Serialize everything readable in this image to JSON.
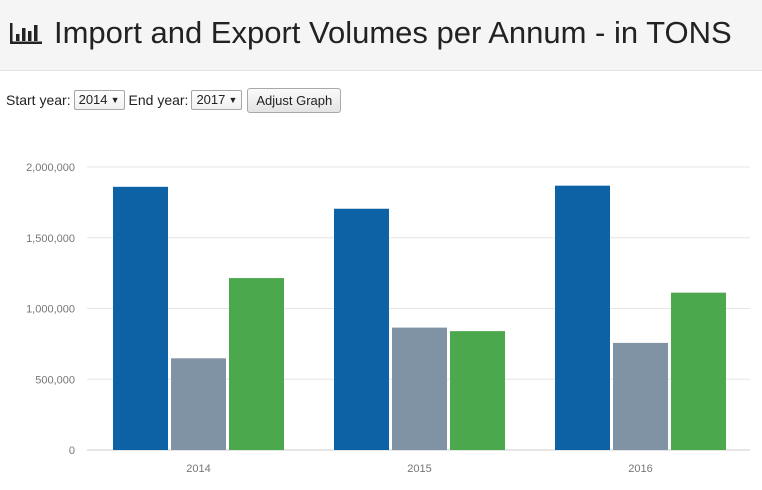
{
  "header": {
    "title": "Import and Export Volumes per Annum - in TONS",
    "icon": "bar-chart-icon"
  },
  "controls": {
    "start_label": "Start year:",
    "start_value": "2014",
    "end_label": "End year:",
    "end_value": "2017",
    "adjust_label": "Adjust Graph"
  },
  "chart_data": {
    "type": "bar",
    "categories": [
      "2014",
      "2015",
      "2016"
    ],
    "series": [
      {
        "color": "#0d62a6",
        "values": [
          1860000,
          1705000,
          1868000
        ]
      },
      {
        "color": "#7f93a5",
        "values": [
          648000,
          865000,
          757000
        ]
      },
      {
        "color": "#4ca84c",
        "values": [
          1215000,
          840000,
          1112000
        ]
      }
    ],
    "ylim": [
      0,
      2000000
    ],
    "y_ticks": [
      0,
      500000,
      1000000,
      1500000,
      2000000
    ],
    "y_tick_labels": [
      "0",
      "500,000",
      "1,000,000",
      "1,500,000",
      "2,000,000"
    ],
    "grid": true,
    "xlabel": "",
    "ylabel": ""
  }
}
